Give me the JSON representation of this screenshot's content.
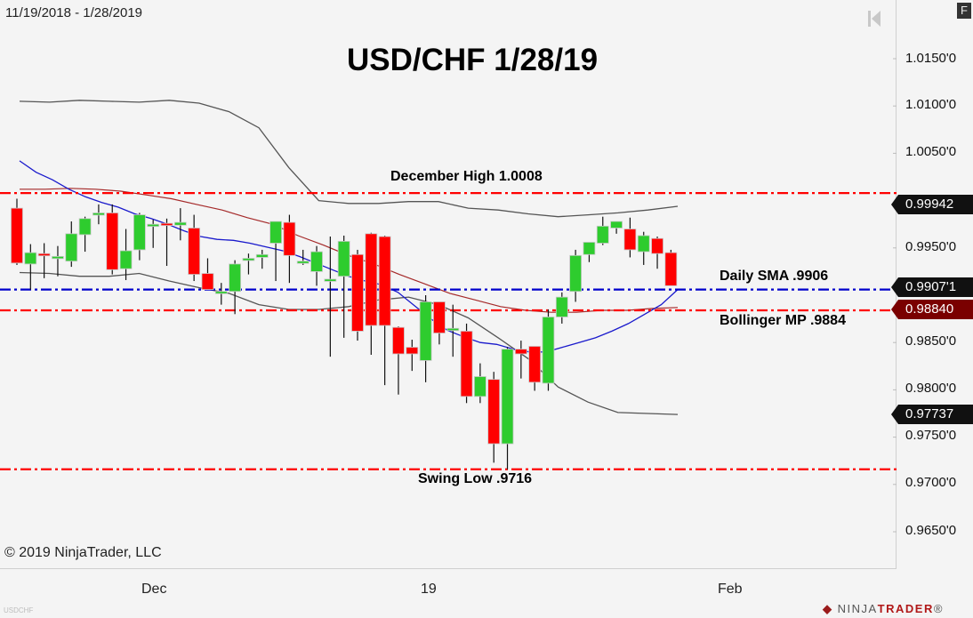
{
  "header": {
    "date_range": "11/19/2018 - 1/28/2019",
    "title": "USD/CHF 1/28/19",
    "f_button": "F",
    "nav_icon": "jump-to-start-icon"
  },
  "footer": {
    "copyright": "© 2019 NinjaTrader, LLC",
    "symbol": "USDCHF",
    "logo_prefix": "NINJA",
    "logo_suffix": "TRADER",
    "logo_mark": "®"
  },
  "price_axis": {
    "labels": [
      "1.0150'0",
      "1.0100'0",
      "1.0050'0",
      "0.9950'0",
      "0.9850'0",
      "0.9800'0",
      "0.9750'0",
      "0.9700'0",
      "0.9650'0"
    ],
    "tags": {
      "upper_band": "0.99942",
      "sma": "0.9907'1",
      "midline": "0.98840",
      "lower_band": "0.97737"
    }
  },
  "time_axis": {
    "labels": [
      "Dec",
      "19",
      "Feb"
    ]
  },
  "annotations": {
    "december_high": "December High 1.0008",
    "daily_sma": "Daily SMA .9906",
    "bollinger_mp": "Bollinger MP .9884",
    "swing_low": "Swing Low .9716"
  },
  "colors": {
    "up_candle": "#2ecc2e",
    "down_candle": "#ff0000",
    "sma_line": "#1a1acc",
    "bollinger_mid": "#a52a2a",
    "bollinger_band": "#555555",
    "level_red": "#ff0000",
    "level_blue": "#0000cc",
    "background": "#f4f4f4"
  },
  "chart_data": {
    "type": "candlestick",
    "title": "USD/CHF 1/28/19",
    "subtitle": "11/19/2018 - 1/28/2019",
    "xlabel": "",
    "ylabel": "",
    "ylim": [
      0.961,
      1.018
    ],
    "y_ticks": [
      1.015,
      1.01,
      1.005,
      0.995,
      0.985,
      0.98,
      0.975,
      0.97,
      0.965
    ],
    "x_ticks": [
      "Dec",
      "19",
      "Feb"
    ],
    "grid": false,
    "horizontal_levels": [
      {
        "name": "December High",
        "value": 1.0008,
        "color": "#ff0000",
        "style": "dash-dot"
      },
      {
        "name": "Daily SMA",
        "value": 0.9906,
        "color": "#0000cc",
        "style": "dash-dot"
      },
      {
        "name": "Bollinger MP",
        "value": 0.9884,
        "color": "#ff0000",
        "style": "dash-dot"
      },
      {
        "name": "Swing Low",
        "value": 0.9716,
        "color": "#ff0000",
        "style": "dash-dot"
      }
    ],
    "candles": [
      {
        "o": 0.9992,
        "h": 1.0002,
        "l": 0.9932,
        "c": 0.9934
      },
      {
        "o": 0.9933,
        "h": 0.9954,
        "l": 0.9906,
        "c": 0.9945
      },
      {
        "o": 0.9944,
        "h": 0.9955,
        "l": 0.9918,
        "c": 0.9943
      },
      {
        "o": 0.994,
        "h": 0.9952,
        "l": 0.992,
        "c": 0.9941
      },
      {
        "o": 0.9936,
        "h": 0.9978,
        "l": 0.993,
        "c": 0.9965
      },
      {
        "o": 0.9964,
        "h": 0.9983,
        "l": 0.9946,
        "c": 0.9981
      },
      {
        "o": 0.9987,
        "h": 0.9996,
        "l": 0.9975,
        "c": 0.9987
      },
      {
        "o": 0.9987,
        "h": 0.9996,
        "l": 0.9922,
        "c": 0.9927
      },
      {
        "o": 0.9928,
        "h": 0.997,
        "l": 0.9916,
        "c": 0.9947
      },
      {
        "o": 0.9948,
        "h": 0.9987,
        "l": 0.9937,
        "c": 0.9985
      },
      {
        "o": 0.9975,
        "h": 0.998,
        "l": 0.995,
        "c": 0.9975
      },
      {
        "o": 0.9976,
        "h": 0.9981,
        "l": 0.9931,
        "c": 0.9975
      },
      {
        "o": 0.9974,
        "h": 0.9992,
        "l": 0.9958,
        "c": 0.9977
      },
      {
        "o": 0.9971,
        "h": 0.9985,
        "l": 0.9915,
        "c": 0.9922
      },
      {
        "o": 0.9923,
        "h": 0.9939,
        "l": 0.9906,
        "c": 0.9906
      },
      {
        "o": 0.9904,
        "h": 0.9913,
        "l": 0.989,
        "c": 0.9904
      },
      {
        "o": 0.9904,
        "h": 0.9937,
        "l": 0.988,
        "c": 0.9933
      },
      {
        "o": 0.9937,
        "h": 0.9944,
        "l": 0.9922,
        "c": 0.9939
      },
      {
        "o": 0.994,
        "h": 0.9948,
        "l": 0.9928,
        "c": 0.9943
      },
      {
        "o": 0.9955,
        "h": 0.9975,
        "l": 0.9915,
        "c": 0.9978
      },
      {
        "o": 0.9977,
        "h": 0.9985,
        "l": 0.9913,
        "c": 0.9942
      },
      {
        "o": 0.9936,
        "h": 0.9948,
        "l": 0.9932,
        "c": 0.9936
      },
      {
        "o": 0.9925,
        "h": 0.9952,
        "l": 0.991,
        "c": 0.9946
      },
      {
        "o": 0.9917,
        "h": 0.9962,
        "l": 0.9835,
        "c": 0.9917
      },
      {
        "o": 0.992,
        "h": 0.9963,
        "l": 0.9855,
        "c": 0.9957
      },
      {
        "o": 0.9943,
        "h": 0.9948,
        "l": 0.9852,
        "c": 0.9862
      },
      {
        "o": 0.9965,
        "h": 0.9966,
        "l": 0.9837,
        "c": 0.9868
      },
      {
        "o": 0.9962,
        "h": 0.9963,
        "l": 0.9805,
        "c": 0.9868
      },
      {
        "o": 0.9866,
        "h": 0.9867,
        "l": 0.9795,
        "c": 0.9838
      },
      {
        "o": 0.9845,
        "h": 0.9853,
        "l": 0.982,
        "c": 0.9838
      },
      {
        "o": 0.9831,
        "h": 0.99,
        "l": 0.9808,
        "c": 0.9893
      },
      {
        "o": 0.9893,
        "h": 0.9893,
        "l": 0.9848,
        "c": 0.986
      },
      {
        "o": 0.9865,
        "h": 0.989,
        "l": 0.9835,
        "c": 0.9865
      },
      {
        "o": 0.9862,
        "h": 0.987,
        "l": 0.9786,
        "c": 0.9793
      },
      {
        "o": 0.9793,
        "h": 0.9828,
        "l": 0.9786,
        "c": 0.9814
      },
      {
        "o": 0.9811,
        "h": 0.9819,
        "l": 0.9723,
        "c": 0.9743
      },
      {
        "o": 0.9743,
        "h": 0.9845,
        "l": 0.9716,
        "c": 0.9843
      },
      {
        "o": 0.9843,
        "h": 0.9852,
        "l": 0.9812,
        "c": 0.9838
      },
      {
        "o": 0.9846,
        "h": 0.9846,
        "l": 0.9799,
        "c": 0.9808
      },
      {
        "o": 0.9807,
        "h": 0.9885,
        "l": 0.9799,
        "c": 0.9877
      },
      {
        "o": 0.9877,
        "h": 0.9903,
        "l": 0.987,
        "c": 0.9898
      },
      {
        "o": 0.9904,
        "h": 0.9948,
        "l": 0.9893,
        "c": 0.9942
      },
      {
        "o": 0.9943,
        "h": 0.9955,
        "l": 0.9935,
        "c": 0.9956
      },
      {
        "o": 0.9955,
        "h": 0.9983,
        "l": 0.9953,
        "c": 0.9973
      },
      {
        "o": 0.9971,
        "h": 0.9978,
        "l": 0.9965,
        "c": 0.9978
      },
      {
        "o": 0.997,
        "h": 0.9982,
        "l": 0.994,
        "c": 0.9948
      },
      {
        "o": 0.9946,
        "h": 0.9967,
        "l": 0.9932,
        "c": 0.9963
      },
      {
        "o": 0.996,
        "h": 0.9962,
        "l": 0.9928,
        "c": 0.9944
      },
      {
        "o": 0.9945,
        "h": 0.9948,
        "l": 0.9922,
        "c": 0.991
      }
    ],
    "series": [
      {
        "name": "Daily SMA",
        "color": "#1a1acc",
        "values": [
          1.0042,
          1.003,
          1.0022,
          1.0012,
          1.0004,
          0.9998,
          0.9993,
          0.9986,
          0.9981,
          0.9975,
          0.9968,
          0.9962,
          0.9959,
          0.9958,
          0.9955,
          0.9951,
          0.9947,
          0.9941,
          0.9934,
          0.9927,
          0.992,
          0.9915,
          0.9911,
          0.9903,
          0.9889,
          0.9875,
          0.9863,
          0.9856,
          0.985,
          0.9848,
          0.9843,
          0.984,
          0.984,
          0.9845,
          0.985,
          0.9855,
          0.9862,
          0.987,
          0.988,
          0.989,
          0.9906
        ]
      },
      {
        "name": "Bollinger Midline",
        "color": "#a52a2a",
        "values": [
          1.0012,
          1.0012,
          1.0013,
          1.0012,
          1.001,
          1.0006,
          1.0002,
          0.9996,
          0.999,
          0.9982,
          0.9975,
          0.9963,
          0.9953,
          0.9942,
          0.9933,
          0.9922,
          0.9912,
          0.9902,
          0.9895,
          0.9888,
          0.9884,
          0.9882,
          0.9882,
          0.9884,
          0.9884,
          0.9886,
          0.9887
        ]
      },
      {
        "name": "Bollinger Upper",
        "color": "#555555",
        "values": [
          1.0105,
          1.0104,
          1.0106,
          1.0105,
          1.0104,
          1.0106,
          1.0103,
          1.0094,
          1.0077,
          1.0035,
          1.0,
          0.9997,
          0.9997,
          0.9999,
          0.9999,
          0.9992,
          0.999,
          0.9986,
          0.9983,
          0.9985,
          0.9987,
          0.999,
          0.9994
        ]
      },
      {
        "name": "Bollinger Lower",
        "color": "#555555",
        "values": [
          0.9924,
          0.9923,
          0.992,
          0.992,
          0.9923,
          0.9915,
          0.9908,
          0.9902,
          0.989,
          0.9885,
          0.9885,
          0.9888,
          0.9895,
          0.9898,
          0.989,
          0.9876,
          0.9855,
          0.9833,
          0.9803,
          0.9787,
          0.9776,
          0.9775,
          0.9774
        ]
      }
    ]
  }
}
